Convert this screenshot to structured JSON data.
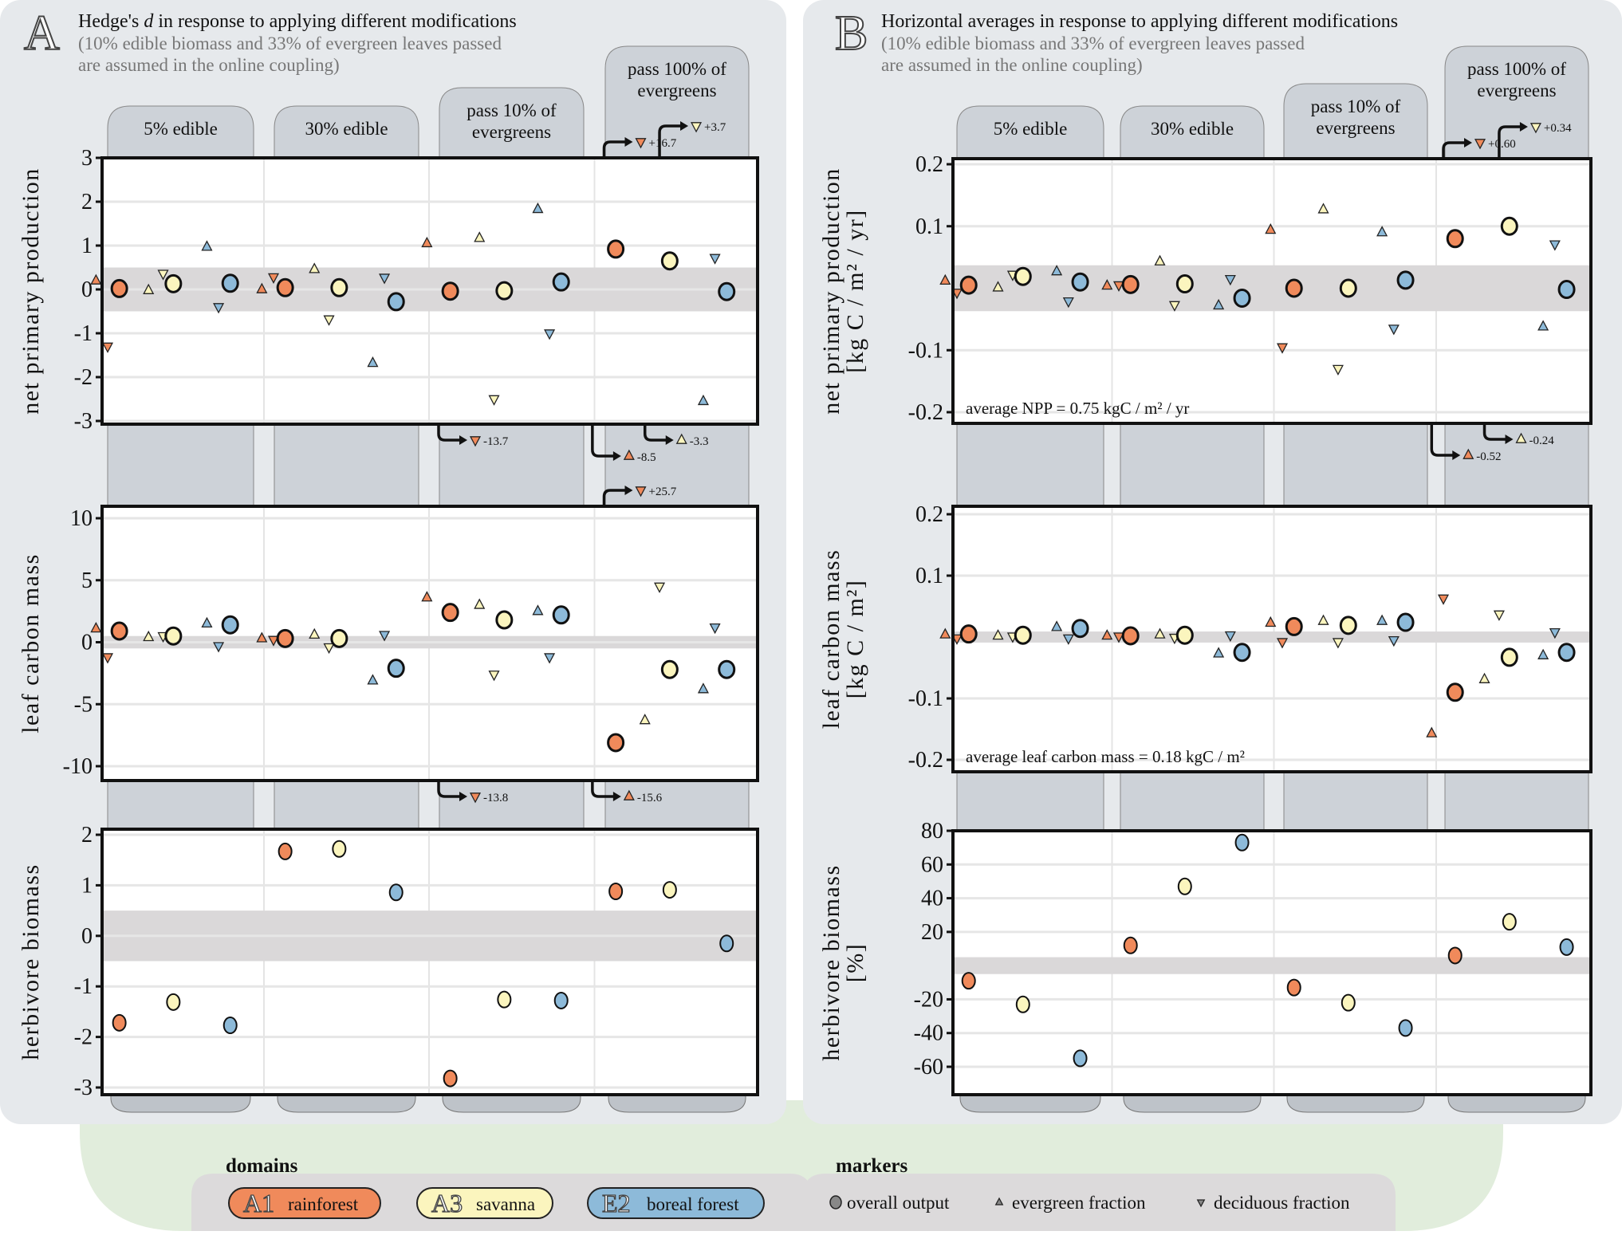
{
  "colors": {
    "rainforest": "#F08A5B",
    "savanna": "#FBF5BE",
    "boreal": "#8DBAD9",
    "panel_bg": "#E6E9EC",
    "strip_bg": "#CDD2D8",
    "band": "#DAD8D9",
    "legend_green": "#E1EDDC",
    "legend_box": "#DCDADB"
  },
  "panels": [
    {
      "letter": "A",
      "title": "Hedge's d in response to applying different modifications",
      "title_pre": "Hedge's ",
      "title_italic": "d",
      "title_post": " in response to applying different modifications",
      "subtitle_line1": "(10% edible biomass and 33% of evergreen leaves passed",
      "subtitle_line2": "are assumed in the online coupling)"
    },
    {
      "letter": "B",
      "title": "Horizontal averages in response to applying different modifications",
      "title_pre": "Horizontal averages in response to applying different modifications",
      "title_italic": "",
      "title_post": "",
      "subtitle_line1": "(10% edible biomass and 33% of evergreen leaves passed",
      "subtitle_line2": "are assumed in the online coupling)"
    }
  ],
  "facets": [
    {
      "line1": "5% edible",
      "line2": ""
    },
    {
      "line1": "30% edible",
      "line2": ""
    },
    {
      "line1": "pass 10% of",
      "line2": "evergreens"
    },
    {
      "line1": "pass 100% of",
      "line2": "evergreens"
    }
  ],
  "legend": {
    "domains_title": "domains",
    "domains": [
      {
        "code": "A1",
        "name": "rainforest",
        "key": "rainforest"
      },
      {
        "code": "A3",
        "name": "savanna",
        "key": "savanna"
      },
      {
        "code": "E2",
        "name": "boreal forest",
        "key": "boreal"
      }
    ],
    "markers_title": "markers",
    "markers": [
      {
        "shape": "circle",
        "label": "overall output"
      },
      {
        "shape": "triangle-up",
        "label": "evergreen fraction"
      },
      {
        "shape": "triangle-down",
        "label": "deciduous fraction"
      }
    ]
  },
  "chart_data": [
    {
      "id": "A-npp",
      "panel": "A",
      "type": "scatter",
      "ylabel": [
        "net primary production"
      ],
      "ylim": [
        -3,
        3
      ],
      "yticks": [
        3,
        2,
        1,
        0,
        -1,
        -2,
        -3
      ],
      "ytick_labels": [
        "3",
        "2",
        "1",
        "0",
        "-1",
        "-2",
        "-3"
      ],
      "band": [
        -0.5,
        0.5
      ],
      "note": "",
      "facets": [
        {
          "overall": {
            "rainforest": 0.02,
            "savanna": 0.13,
            "boreal": 0.14
          },
          "evergreen": {
            "rainforest": 0.2,
            "savanna": -0.02,
            "boreal": 0.97
          },
          "deciduous": {
            "rainforest": -1.3,
            "savanna": 0.36,
            "boreal": -0.4
          }
        },
        {
          "overall": {
            "rainforest": 0.04,
            "savanna": 0.04,
            "boreal": -0.28
          },
          "evergreen": {
            "rainforest": 0.0,
            "savanna": 0.46,
            "boreal": -1.68
          },
          "deciduous": {
            "rainforest": 0.28,
            "savanna": -0.68,
            "boreal": 0.27
          }
        },
        {
          "overall": {
            "rainforest": -0.04,
            "savanna": -0.03,
            "boreal": 0.17
          },
          "evergreen": {
            "rainforest": 1.05,
            "savanna": 1.17,
            "boreal": 1.83
          },
          "deciduous": {
            "rainforest": null,
            "savanna": -2.5,
            "boreal": -1.0
          }
        },
        {
          "overall": {
            "rainforest": 0.92,
            "savanna": 0.65,
            "boreal": -0.05
          },
          "evergreen": {
            "rainforest": null,
            "savanna": null,
            "boreal": -2.55
          },
          "deciduous": {
            "rainforest": null,
            "savanna": null,
            "boreal": 0.72
          }
        }
      ],
      "offscale": [
        {
          "facet": 3,
          "marker": "deciduous",
          "domain": "rainforest",
          "label": "+16.7",
          "side": "top",
          "level": 0
        },
        {
          "facet": 3,
          "marker": "deciduous",
          "domain": "savanna",
          "label": "+3.7",
          "side": "top",
          "level": 1
        },
        {
          "facet": 2,
          "marker": "deciduous",
          "domain": "rainforest",
          "label": "-13.7",
          "side": "bottom",
          "level": 0
        },
        {
          "facet": 3,
          "marker": "evergreen",
          "domain": "savanna",
          "label": "-3.3",
          "side": "bottom",
          "level": 0
        },
        {
          "facet": 3,
          "marker": "evergreen",
          "domain": "rainforest",
          "label": "-8.5",
          "side": "bottom",
          "level": 1
        }
      ]
    },
    {
      "id": "A-leaf",
      "panel": "A",
      "type": "scatter",
      "ylabel": [
        "leaf carbon mass"
      ],
      "ylim": [
        -11.2,
        11.2
      ],
      "yticks": [
        10,
        5,
        0,
        -5,
        -10
      ],
      "ytick_labels": [
        "10",
        "5",
        "0",
        "-5",
        "-10"
      ],
      "band": [
        -0.5,
        0.5
      ],
      "note": "",
      "facets": [
        {
          "overall": {
            "rainforest": 0.9,
            "savanna": 0.5,
            "boreal": 1.4
          },
          "evergreen": {
            "rainforest": 1.1,
            "savanna": 0.4,
            "boreal": 1.5
          },
          "deciduous": {
            "rainforest": -1.2,
            "savanna": 0.5,
            "boreal": -0.3
          }
        },
        {
          "overall": {
            "rainforest": 0.3,
            "savanna": 0.3,
            "boreal": -2.1
          },
          "evergreen": {
            "rainforest": 0.3,
            "savanna": 0.6,
            "boreal": -3.1
          },
          "deciduous": {
            "rainforest": 0.2,
            "savanna": -0.4,
            "boreal": 0.6
          }
        },
        {
          "overall": {
            "rainforest": 2.4,
            "savanna": 1.8,
            "boreal": 2.2
          },
          "evergreen": {
            "rainforest": 3.6,
            "savanna": 3.0,
            "boreal": 2.5
          },
          "deciduous": {
            "rainforest": null,
            "savanna": -2.6,
            "boreal": -1.2
          }
        },
        {
          "overall": {
            "rainforest": -8.1,
            "savanna": -2.2,
            "boreal": -2.2
          },
          "evergreen": {
            "rainforest": null,
            "savanna": -6.3,
            "boreal": -3.8
          },
          "deciduous": {
            "rainforest": null,
            "savanna": 4.5,
            "boreal": 1.2
          }
        }
      ],
      "offscale": [
        {
          "facet": 3,
          "marker": "deciduous",
          "domain": "rainforest",
          "label": "+25.7",
          "side": "top",
          "level": 0
        },
        {
          "facet": 2,
          "marker": "deciduous",
          "domain": "rainforest",
          "label": "-13.8",
          "side": "bottom",
          "level": 0
        },
        {
          "facet": 3,
          "marker": "evergreen",
          "domain": "rainforest",
          "label": "-15.6",
          "side": "bottom",
          "level": 0
        }
      ]
    },
    {
      "id": "A-herb",
      "panel": "A",
      "type": "scatter",
      "ylabel": [
        "herbivore biomass"
      ],
      "ylim": [
        -3.1,
        2.1
      ],
      "yticks": [
        2,
        1,
        0,
        -1,
        -2,
        -3
      ],
      "ytick_labels": [
        "2",
        "1",
        "0",
        "-1",
        "-2",
        "-3"
      ],
      "band": [
        -0.5,
        0.5
      ],
      "note": "",
      "facets": [
        {
          "overall": {
            "rainforest": -1.72,
            "savanna": -1.31,
            "boreal": -1.77
          }
        },
        {
          "overall": {
            "rainforest": 1.67,
            "savanna": 1.72,
            "boreal": 0.86
          }
        },
        {
          "overall": {
            "rainforest": -2.82,
            "savanna": -1.26,
            "boreal": -1.28
          }
        },
        {
          "overall": {
            "rainforest": 0.88,
            "savanna": 0.91,
            "boreal": -0.15
          }
        }
      ],
      "offscale": []
    },
    {
      "id": "B-npp",
      "panel": "B",
      "type": "scatter",
      "ylabel": [
        "net primary production",
        "[kg C / m² / yr]"
      ],
      "ylim": [
        -0.218,
        0.218
      ],
      "yticks": [
        0.2,
        0.1,
        -0.1,
        -0.2
      ],
      "ytick_labels": [
        "0.2",
        "0.1",
        "-0.1",
        "-0.2"
      ],
      "band": [
        -0.037,
        0.037
      ],
      "note": "average NPP = 0.75 kgC / m² / yr",
      "facets": [
        {
          "overall": {
            "rainforest": 0.005,
            "savanna": 0.019,
            "boreal": 0.01
          },
          "evergreen": {
            "rainforest": 0.012,
            "savanna": 0.001,
            "boreal": 0.027
          },
          "deciduous": {
            "rainforest": -0.007,
            "savanna": 0.022,
            "boreal": -0.021
          }
        },
        {
          "overall": {
            "rainforest": 0.006,
            "savanna": 0.007,
            "boreal": -0.016
          },
          "evergreen": {
            "rainforest": 0.004,
            "savanna": 0.043,
            "boreal": -0.028
          },
          "deciduous": {
            "rainforest": 0.005,
            "savanna": -0.027,
            "boreal": 0.015
          }
        },
        {
          "overall": {
            "rainforest": 0.0,
            "savanna": 0.0,
            "boreal": 0.013
          },
          "evergreen": {
            "rainforest": 0.094,
            "savanna": 0.127,
            "boreal": 0.09
          },
          "deciduous": {
            "rainforest": -0.095,
            "savanna": -0.13,
            "boreal": -0.065
          }
        },
        {
          "overall": {
            "rainforest": 0.08,
            "savanna": 0.1,
            "boreal": -0.002
          },
          "evergreen": {
            "rainforest": null,
            "savanna": null,
            "boreal": -0.062
          },
          "deciduous": {
            "rainforest": null,
            "savanna": null,
            "boreal": 0.071
          }
        }
      ],
      "offscale": [
        {
          "facet": 3,
          "marker": "deciduous",
          "domain": "rainforest",
          "label": "+0.60",
          "side": "top",
          "level": 0
        },
        {
          "facet": 3,
          "marker": "deciduous",
          "domain": "savanna",
          "label": "+0.34",
          "side": "top",
          "level": 1
        },
        {
          "facet": 3,
          "marker": "evergreen",
          "domain": "savanna",
          "label": "-0.24",
          "side": "bottom",
          "level": 0
        },
        {
          "facet": 3,
          "marker": "evergreen",
          "domain": "rainforest",
          "label": "-0.52",
          "side": "bottom",
          "level": 1
        }
      ]
    },
    {
      "id": "B-leaf",
      "panel": "B",
      "type": "scatter",
      "ylabel": [
        "leaf carbon mass",
        "[kg C / m²]"
      ],
      "ylim": [
        -0.218,
        0.213
      ],
      "yticks": [
        0.2,
        0.1,
        -0.1,
        -0.2
      ],
      "ytick_labels": [
        "0.2",
        "0.1",
        "-0.1",
        "-0.2"
      ],
      "band": [
        -0.009,
        0.009
      ],
      "note": "average leaf carbon mass = 0.18 kgC / m²",
      "facets": [
        {
          "overall": {
            "rainforest": 0.005,
            "savanna": 0.003,
            "boreal": 0.014
          },
          "evergreen": {
            "rainforest": 0.004,
            "savanna": 0.002,
            "boreal": 0.016
          },
          "deciduous": {
            "rainforest": -0.002,
            "savanna": 0.001,
            "boreal": -0.002
          }
        },
        {
          "overall": {
            "rainforest": 0.002,
            "savanna": 0.003,
            "boreal": -0.025
          },
          "evergreen": {
            "rainforest": 0.002,
            "savanna": 0.004,
            "boreal": -0.027
          },
          "deciduous": {
            "rainforest": 0.001,
            "savanna": -0.001,
            "boreal": 0.003
          }
        },
        {
          "overall": {
            "rainforest": 0.017,
            "savanna": 0.019,
            "boreal": 0.024
          },
          "evergreen": {
            "rainforest": 0.023,
            "savanna": 0.026,
            "boreal": 0.026
          },
          "deciduous": {
            "rainforest": -0.008,
            "savanna": -0.008,
            "boreal": -0.005
          }
        },
        {
          "overall": {
            "rainforest": -0.09,
            "savanna": -0.033,
            "boreal": -0.025
          },
          "evergreen": {
            "rainforest": -0.157,
            "savanna": -0.069,
            "boreal": -0.03
          },
          "deciduous": {
            "rainforest": 0.063,
            "savanna": 0.037,
            "boreal": 0.008
          }
        }
      ],
      "offscale": []
    },
    {
      "id": "B-herb",
      "panel": "B",
      "type": "scatter",
      "ylabel": [
        "herbivore biomass",
        "[%]"
      ],
      "ylim": [
        -78,
        80
      ],
      "yticks": [
        80,
        60,
        40,
        20,
        -20,
        -40,
        -60
      ],
      "ytick_labels": [
        "80",
        "60",
        "40",
        "20",
        "-20",
        "-40",
        "-60"
      ],
      "band": [
        -5,
        5
      ],
      "note": "",
      "facets": [
        {
          "overall": {
            "rainforest": -9,
            "savanna": -23,
            "boreal": -55
          }
        },
        {
          "overall": {
            "rainforest": 12,
            "savanna": 47,
            "boreal": 73
          }
        },
        {
          "overall": {
            "rainforest": -13,
            "savanna": -22,
            "boreal": -37
          }
        },
        {
          "overall": {
            "rainforest": 6,
            "savanna": 26,
            "boreal": 11
          }
        }
      ],
      "offscale": []
    }
  ]
}
